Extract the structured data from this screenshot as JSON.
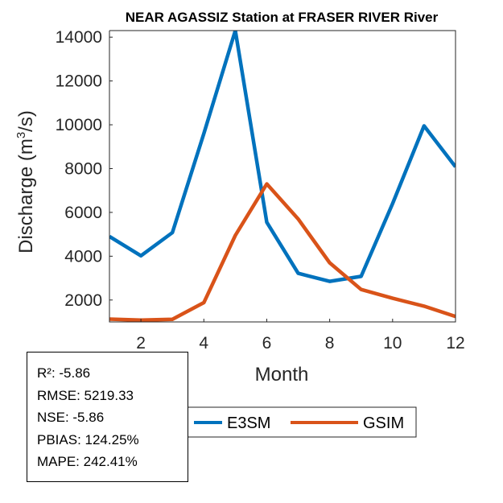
{
  "chart_data": {
    "type": "line",
    "title": "NEAR AGASSIZ  Station at  FRASER RIVER  River",
    "xlabel": "Month",
    "ylabel": "Discharge (m",
    "ylabel_sup": "3",
    "ylabel_end": "/s)",
    "xlim": [
      1,
      12
    ],
    "ylim": [
      1000,
      14300
    ],
    "xticks": [
      "2",
      "4",
      "6",
      "8",
      "10",
      "12"
    ],
    "yticks": [
      "2000",
      "4000",
      "6000",
      "8000",
      "10000",
      "12000",
      "14000"
    ],
    "x": [
      1,
      2,
      3,
      4,
      5,
      6,
      7,
      8,
      9,
      10,
      11,
      12
    ],
    "series": [
      {
        "name": "E3SM",
        "color": "#0072BD",
        "values": [
          4900,
          4020,
          5080,
          9600,
          14300,
          5550,
          3220,
          2850,
          3080,
          6400,
          9950,
          8080
        ]
      },
      {
        "name": "GSIM",
        "color": "#D95319",
        "values": [
          1130,
          1080,
          1120,
          1880,
          4950,
          7300,
          5700,
          3700,
          2480,
          2080,
          1720,
          1250
        ]
      }
    ]
  },
  "stats": {
    "r2": "R²: -5.86",
    "rmse": "RMSE: 5219.33",
    "nse": "NSE: -5.86",
    "pbias": "PBIAS: 124.25%",
    "mape": "MAPE: 242.41%"
  }
}
